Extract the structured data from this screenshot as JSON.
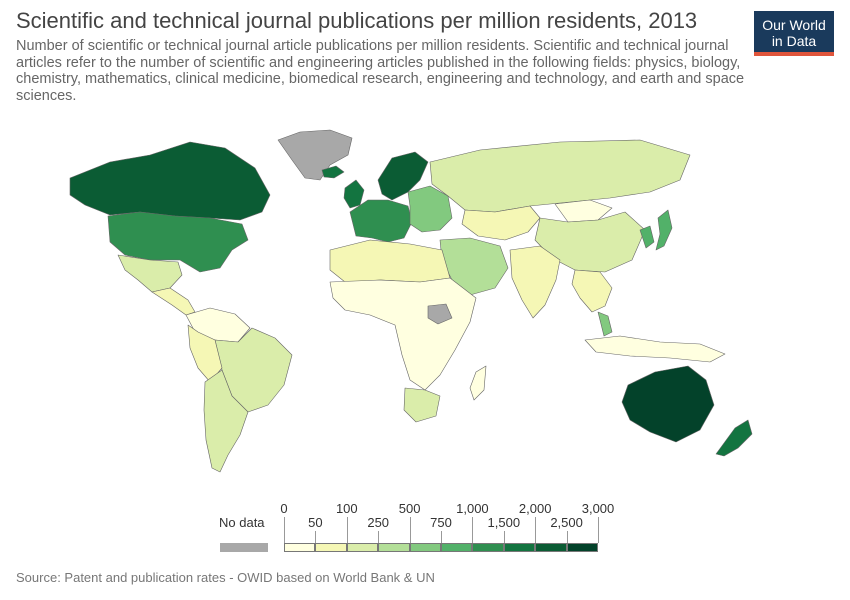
{
  "header": {
    "title": "Scientific and technical journal publications per million residents, 2013",
    "subtitle": "Number of scientific or technical journal article publications per million residents. Scientific and technical journal articles refer to the number of scientific and engineering articles published in the following fields: physics, biology, chemistry, mathematics, clinical medicine, biomedical research, engineering and technology, and earth and space sciences."
  },
  "logo": {
    "line1": "Our World",
    "line2": "in Data",
    "bg": "#1a3a5c",
    "accent": "#e0553b"
  },
  "legend": {
    "no_data_label": "No data",
    "no_data_color": "#a8a8a8",
    "bins": [
      {
        "from": "0",
        "to": "50",
        "color": "#ffffe0"
      },
      {
        "from": "50",
        "to": "100",
        "color": "#f5f7b5"
      },
      {
        "from": "100",
        "to": "250",
        "color": "#daedaa"
      },
      {
        "from": "250",
        "to": "500",
        "color": "#b3df98"
      },
      {
        "from": "500",
        "to": "750",
        "color": "#82c97f"
      },
      {
        "from": "750",
        "to": "1,000",
        "color": "#52b169"
      },
      {
        "from": "1,000",
        "to": "1,500",
        "color": "#2f8f50"
      },
      {
        "from": "1,500",
        "to": "2,000",
        "color": "#137440"
      },
      {
        "from": "2,000",
        "to": "2,500",
        "color": "#0b5c34"
      },
      {
        "from": "2,500",
        "to": "3,000",
        "color": "#03422a"
      }
    ],
    "top_ticks": [
      "0",
      "100",
      "500",
      "1,000",
      "2,000",
      "3,000"
    ],
    "bottom_ticks": [
      "50",
      "250",
      "750",
      "1,500",
      "2,500"
    ]
  },
  "source": "Source: Patent and publication rates - OWID based on World Bank & UN",
  "map": {
    "regions": [
      {
        "name": "greenland",
        "color": "#a8a8a8"
      },
      {
        "name": "canada",
        "color": "#0b5c34"
      },
      {
        "name": "usa",
        "color": "#2f8f50"
      },
      {
        "name": "mexico",
        "color": "#daedaa"
      },
      {
        "name": "central-america",
        "color": "#f5f7b5"
      },
      {
        "name": "south-america-north",
        "color": "#ffffe0"
      },
      {
        "name": "brazil",
        "color": "#daedaa"
      },
      {
        "name": "andes",
        "color": "#f5f7b5"
      },
      {
        "name": "chile-argentina",
        "color": "#daedaa"
      },
      {
        "name": "europe-west",
        "color": "#2f8f50"
      },
      {
        "name": "scandinavia",
        "color": "#0b5c34"
      },
      {
        "name": "iceland",
        "color": "#137440"
      },
      {
        "name": "uk-ireland",
        "color": "#137440"
      },
      {
        "name": "eastern-europe",
        "color": "#82c97f"
      },
      {
        "name": "russia",
        "color": "#daedaa"
      },
      {
        "name": "central-asia",
        "color": "#f5f7b5"
      },
      {
        "name": "middle-east",
        "color": "#b3df98"
      },
      {
        "name": "north-africa",
        "color": "#f5f7b5"
      },
      {
        "name": "africa",
        "color": "#ffffe0"
      },
      {
        "name": "south-africa",
        "color": "#daedaa"
      },
      {
        "name": "india",
        "color": "#f5f7b5"
      },
      {
        "name": "china",
        "color": "#daedaa"
      },
      {
        "name": "mongolia",
        "color": "#ffffe0"
      },
      {
        "name": "korea",
        "color": "#52b169"
      },
      {
        "name": "japan",
        "color": "#52b169"
      },
      {
        "name": "southeast-asia",
        "color": "#f5f7b5"
      },
      {
        "name": "malaysia",
        "color": "#82c97f"
      },
      {
        "name": "indonesia",
        "color": "#ffffe0"
      },
      {
        "name": "australia",
        "color": "#03422a"
      },
      {
        "name": "new-zealand",
        "color": "#137440"
      },
      {
        "name": "madagascar",
        "color": "#ffffe0"
      },
      {
        "name": "south-sudan",
        "color": "#a8a8a8"
      }
    ]
  }
}
